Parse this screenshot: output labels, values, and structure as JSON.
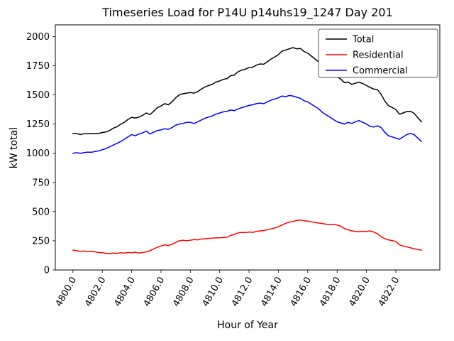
{
  "figure": {
    "background": "#ffffff"
  },
  "chart_data": {
    "type": "line",
    "title": "Timeseries Load for P14U p14uhs19_1247  Day 201",
    "xlabel": "Hour of Year",
    "ylabel": "kW total",
    "grid": false,
    "legend_position": "upper right",
    "xlim": [
      4798.8,
      4825.0
    ],
    "ylim": [
      0,
      2100
    ],
    "xticks": {
      "values": [
        4800,
        4802,
        4804,
        4806,
        4808,
        4810,
        4812,
        4814,
        4816,
        4818,
        4820,
        4822
      ],
      "labels": [
        "4800.0",
        "4802.0",
        "4804.0",
        "4806.0",
        "4808.0",
        "4810.0",
        "4812.0",
        "4814.0",
        "4816.0",
        "4818.0",
        "4820.0",
        "4822.0"
      ]
    },
    "yticks": {
      "values": [
        0,
        250,
        500,
        750,
        1000,
        1250,
        1500,
        1750,
        2000
      ],
      "labels": [
        "0",
        "250",
        "500",
        "750",
        "1000",
        "1250",
        "1500",
        "1750",
        "2000"
      ]
    },
    "x": [
      4800.0,
      4800.25,
      4800.5,
      4800.75,
      4801.0,
      4801.25,
      4801.5,
      4801.75,
      4802.0,
      4802.25,
      4802.5,
      4802.75,
      4803.0,
      4803.25,
      4803.5,
      4803.75,
      4804.0,
      4804.25,
      4804.5,
      4804.75,
      4805.0,
      4805.25,
      4805.5,
      4805.75,
      4806.0,
      4806.25,
      4806.5,
      4806.75,
      4807.0,
      4807.25,
      4807.5,
      4807.75,
      4808.0,
      4808.25,
      4808.5,
      4808.75,
      4809.0,
      4809.25,
      4809.5,
      4809.75,
      4810.0,
      4810.25,
      4810.5,
      4810.75,
      4811.0,
      4811.25,
      4811.5,
      4811.75,
      4812.0,
      4812.25,
      4812.5,
      4812.75,
      4813.0,
      4813.25,
      4813.5,
      4813.75,
      4814.0,
      4814.25,
      4814.5,
      4814.75,
      4815.0,
      4815.25,
      4815.5,
      4815.75,
      4816.0,
      4816.25,
      4816.5,
      4816.75,
      4817.0,
      4817.25,
      4817.5,
      4817.75,
      4818.0,
      4818.25,
      4818.5,
      4818.75,
      4819.0,
      4819.25,
      4819.5,
      4819.75,
      4820.0,
      4820.25,
      4820.5,
      4820.75,
      4821.0,
      4821.25,
      4821.5,
      4821.75,
      4822.0,
      4822.25,
      4822.5,
      4822.75,
      4823.0,
      4823.25,
      4823.5,
      4823.75
    ],
    "series": [
      {
        "name": "Total",
        "color": "#000000",
        "values": [
          1170,
          1170,
          1160,
          1167,
          1168,
          1168,
          1170,
          1170,
          1178,
          1183,
          1195,
          1215,
          1227,
          1248,
          1265,
          1290,
          1308,
          1302,
          1310,
          1325,
          1345,
          1330,
          1360,
          1390,
          1405,
          1425,
          1415,
          1440,
          1475,
          1500,
          1510,
          1515,
          1520,
          1515,
          1528,
          1550,
          1568,
          1580,
          1592,
          1610,
          1620,
          1633,
          1640,
          1665,
          1670,
          1698,
          1712,
          1720,
          1735,
          1737,
          1755,
          1765,
          1763,
          1785,
          1807,
          1825,
          1845,
          1875,
          1885,
          1895,
          1905,
          1895,
          1898,
          1872,
          1858,
          1832,
          1808,
          1782,
          1748,
          1722,
          1698,
          1680,
          1655,
          1635,
          1605,
          1610,
          1590,
          1600,
          1608,
          1597,
          1580,
          1565,
          1550,
          1545,
          1505,
          1448,
          1408,
          1392,
          1375,
          1335,
          1345,
          1358,
          1360,
          1342,
          1305,
          1270
        ]
      },
      {
        "name": "Residential",
        "color": "#ff0000",
        "values": [
          170,
          165,
          160,
          162,
          158,
          160,
          155,
          150,
          148,
          143,
          140,
          145,
          142,
          148,
          145,
          150,
          148,
          152,
          145,
          150,
          155,
          165,
          180,
          195,
          205,
          215,
          210,
          220,
          235,
          250,
          255,
          250,
          255,
          260,
          258,
          265,
          268,
          270,
          272,
          275,
          275,
          278,
          280,
          295,
          305,
          318,
          322,
          320,
          325,
          322,
          330,
          335,
          338,
          345,
          352,
          360,
          370,
          385,
          400,
          410,
          415,
          425,
          428,
          422,
          418,
          412,
          408,
          402,
          398,
          392,
          388,
          390,
          385,
          375,
          355,
          345,
          335,
          330,
          328,
          332,
          330,
          335,
          325,
          310,
          285,
          268,
          258,
          252,
          245,
          215,
          205,
          198,
          190,
          182,
          175,
          170
        ]
      },
      {
        "name": "Commercial",
        "color": "#0000ff",
        "values": [
          1000,
          1005,
          1000,
          1005,
          1010,
          1008,
          1015,
          1020,
          1030,
          1040,
          1055,
          1070,
          1085,
          1100,
          1120,
          1140,
          1160,
          1150,
          1165,
          1175,
          1190,
          1165,
          1180,
          1195,
          1200,
          1210,
          1205,
          1220,
          1240,
          1250,
          1255,
          1265,
          1265,
          1255,
          1270,
          1285,
          1300,
          1310,
          1320,
          1335,
          1345,
          1355,
          1360,
          1370,
          1365,
          1380,
          1390,
          1400,
          1410,
          1415,
          1425,
          1430,
          1425,
          1440,
          1455,
          1465,
          1475,
          1490,
          1485,
          1495,
          1490,
          1480,
          1470,
          1450,
          1440,
          1420,
          1400,
          1380,
          1350,
          1330,
          1310,
          1290,
          1270,
          1260,
          1250,
          1265,
          1255,
          1270,
          1280,
          1265,
          1250,
          1230,
          1225,
          1235,
          1220,
          1180,
          1150,
          1140,
          1130,
          1120,
          1140,
          1160,
          1170,
          1160,
          1130,
          1100
        ]
      }
    ]
  }
}
